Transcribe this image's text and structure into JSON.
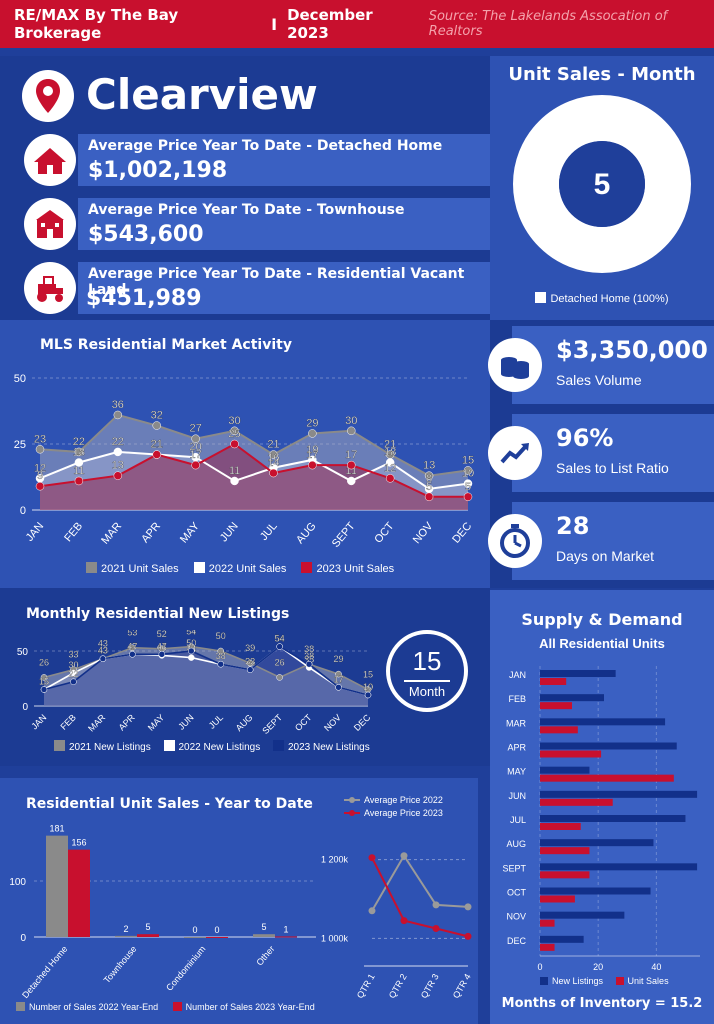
{
  "header": {
    "brand": "RE/MAX By The Bay Brokerage",
    "separator": "I",
    "date": "December 2023",
    "source": "Source: The Lakelands Assocation of Realtors"
  },
  "city": "Clearview",
  "avg_prices": [
    {
      "title": "Average Price Year To Date - Detached Home",
      "value": "$1,002,198",
      "icon": "house-icon"
    },
    {
      "title": "Average Price Year To Date - Townhouse",
      "value": "$543,600",
      "icon": "townhouse-icon"
    },
    {
      "title": "Average Price Year To Date - Residential Vacant Land",
      "value": "$451,989",
      "icon": "tractor-icon"
    }
  ],
  "unit_sales_month": {
    "title": "Unit Sales - Month",
    "value": "5",
    "legend": "Detached Home (100%)"
  },
  "kpis": [
    {
      "value": "$3,350,000",
      "label": "Sales Volume",
      "icon": "coins-icon"
    },
    {
      "value": "96%",
      "label": "Sales to List Ratio",
      "icon": "trend-up-icon"
    },
    {
      "value": "28",
      "label": "Days on Market",
      "icon": "stopwatch-icon"
    }
  ],
  "months_badge": {
    "value": "15",
    "label": "Month"
  },
  "months_of_inventory": "Months of Inventory = 15.2",
  "colors": {
    "y2021": "#8a8a8a",
    "y2022": "#ffffff",
    "y2023": "#c8102e",
    "navy": "#12308a",
    "red": "#c8102e"
  },
  "chart_data": [
    {
      "type": "area",
      "title": "MLS Residential Market Activity",
      "categories": [
        "JAN",
        "FEB",
        "MAR",
        "APR",
        "MAY",
        "JUN",
        "JUL",
        "AUG",
        "SEPT",
        "OCT",
        "NOV",
        "DEC"
      ],
      "ylim": [
        0,
        50
      ],
      "yticks": [
        0,
        25,
        50
      ],
      "series": [
        {
          "name": "2021 Unit Sales",
          "values": [
            23,
            22,
            36,
            32,
            27,
            30,
            21,
            29,
            30,
            21,
            13,
            15
          ]
        },
        {
          "name": "2022 Unit Sales",
          "values": [
            12,
            18,
            22,
            21,
            20,
            11,
            16,
            19,
            11,
            18,
            8,
            10
          ]
        },
        {
          "name": "2023 Unit Sales",
          "values": [
            9,
            11,
            13,
            21,
            17,
            25,
            14,
            17,
            17,
            12,
            5,
            5
          ]
        }
      ]
    },
    {
      "type": "area",
      "title": "Monthly Residential New Listings",
      "categories": [
        "JAN",
        "FEB",
        "MAR",
        "APR",
        "MAY",
        "JUN",
        "JUL",
        "AUG",
        "SEPT",
        "OCT",
        "NOV",
        "DEC"
      ],
      "ylim": [
        0,
        60
      ],
      "yticks": [
        0,
        50
      ],
      "series": [
        {
          "name": "2021 New Listings",
          "values": [
            26,
            33,
            43,
            53,
            52,
            54,
            50,
            39,
            26,
            38,
            29,
            15
          ]
        },
        {
          "name": "2022 New Listings",
          "values": [
            15,
            30,
            43,
            47,
            46,
            44,
            38,
            33,
            54,
            35,
            17,
            10
          ]
        },
        {
          "name": "2023 New Listings",
          "values": [
            15,
            22,
            43,
            47,
            47,
            50,
            38,
            33,
            54,
            38,
            17,
            10
          ]
        }
      ]
    },
    {
      "type": "bar",
      "title": "Residential Unit Sales - Year to Date",
      "categories": [
        "Detached Home",
        "Townhouse",
        "Condominium",
        "Other"
      ],
      "ylim": [
        0,
        200
      ],
      "yticks": [
        0,
        100
      ],
      "series": [
        {
          "name": "Number of Sales 2022 Year-End",
          "values": [
            181,
            2,
            0,
            5
          ]
        },
        {
          "name": "Number of Sales 2023 Year-End",
          "values": [
            156,
            5,
            0,
            1
          ]
        }
      ]
    },
    {
      "type": "line",
      "title": "",
      "categories": [
        "QTR 1",
        "QTR 2",
        "QTR 3",
        "QTR 4"
      ],
      "ylim": [
        950000,
        1250000
      ],
      "yticks": [
        1000000,
        1200000
      ],
      "ytick_labels": [
        "1 000k",
        "1 200k"
      ],
      "series": [
        {
          "name": "Average Price 2022",
          "values": [
            1070000,
            1210000,
            1085000,
            1080000
          ]
        },
        {
          "name": "Average Price 2023",
          "values": [
            1205000,
            1045000,
            1025000,
            1005000
          ]
        }
      ]
    },
    {
      "type": "bar",
      "title": "Supply & Demand",
      "subtitle": "All Residential Units",
      "categories": [
        "JAN",
        "FEB",
        "MAR",
        "APR",
        "MAY",
        "JUN",
        "JUL",
        "AUG",
        "SEPT",
        "OCT",
        "NOV",
        "DEC"
      ],
      "xlim": [
        0,
        55
      ],
      "xticks": [
        0,
        20,
        40
      ],
      "orientation": "horizontal",
      "series": [
        {
          "name": "New Listings",
          "values": [
            26,
            22,
            43,
            47,
            17,
            54,
            50,
            39,
            54,
            38,
            29,
            15
          ]
        },
        {
          "name": "Unit Sales",
          "values": [
            9,
            11,
            13,
            21,
            46,
            25,
            14,
            17,
            17,
            12,
            5,
            5
          ]
        }
      ]
    }
  ]
}
